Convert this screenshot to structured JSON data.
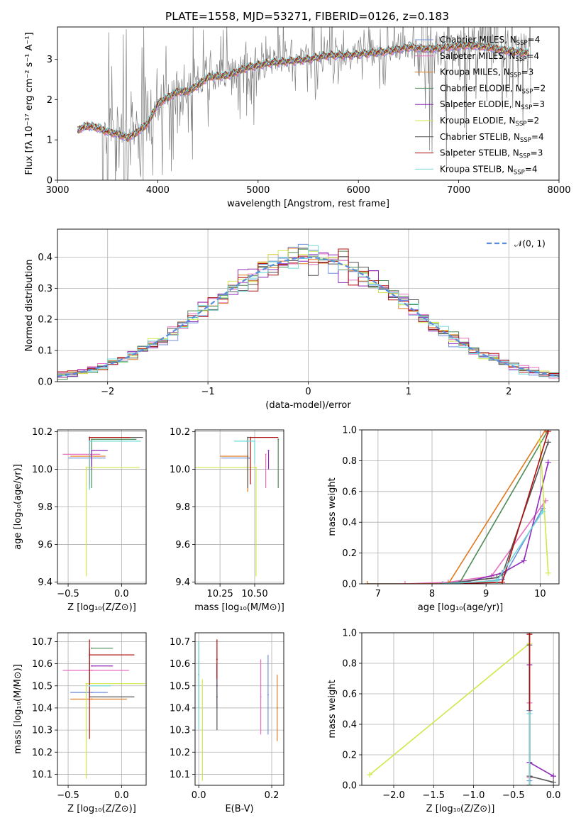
{
  "figure_title": "PLATE=1558, MJD=53271, FIBERID=0126, z=0.183",
  "colors": {
    "Chabrier MILES": "#6f8fdc",
    "Salpeter MILES": "#e870c0",
    "Kroupa MILES": "#e07a20",
    "Chabrier ELODIE": "#4d8b57",
    "Salpeter ELODIE": "#8e2bb8",
    "Kroupa ELODIE": "#cfe84a",
    "Chabrier STELIB": "#555555",
    "Salpeter STELIB": "#b01010",
    "Kroupa STELIB": "#6fd8d8",
    "data": "#808080",
    "normal": "#5b8bdc"
  },
  "chart_data": [
    {
      "id": "spectrum",
      "type": "line",
      "xlabel": "wavelength [Angstrom, rest frame]",
      "ylabel": "Flux [fλ 10⁻¹⁷ erg cm⁻² s⁻¹ A⁻¹]",
      "xlim": [
        3000,
        8000
      ],
      "ylim": [
        0,
        3.8
      ],
      "xticks": [
        "3000",
        "4000",
        "5000",
        "6000",
        "7000",
        "8000"
      ],
      "yticks": [
        "0",
        "1",
        "2",
        "3"
      ],
      "legend_position": "top-right",
      "continuum_x": [
        3200,
        3300,
        3400,
        3500,
        3600,
        3700,
        3800,
        3900,
        4000,
        4100,
        4200,
        4300,
        4400,
        4500,
        4700,
        4900,
        5100,
        5300,
        5500,
        5700,
        5900,
        6100,
        6300,
        6500,
        6700,
        6900,
        7100,
        7300,
        7500,
        7700
      ],
      "continuum_y": [
        1.25,
        1.35,
        1.3,
        1.2,
        1.15,
        1.05,
        1.2,
        1.4,
        1.9,
        2.05,
        2.2,
        2.2,
        2.35,
        2.55,
        2.6,
        2.8,
        2.9,
        2.95,
        3.0,
        3.1,
        3.1,
        3.15,
        3.2,
        3.3,
        3.25,
        3.3,
        3.35,
        3.3,
        3.2,
        3.15
      ],
      "series": [
        {
          "name": "Chabrier MILES",
          "nssp": "4"
        },
        {
          "name": "Salpeter MILES",
          "nssp": "4"
        },
        {
          "name": "Kroupa MILES",
          "nssp": "3"
        },
        {
          "name": "Chabrier ELODIE",
          "nssp": "2"
        },
        {
          "name": "Salpeter ELODIE",
          "nssp": "3"
        },
        {
          "name": "Kroupa ELODIE",
          "nssp": "2"
        },
        {
          "name": "Chabrier STELIB",
          "nssp": "4"
        },
        {
          "name": "Salpeter STELIB",
          "nssp": "3"
        },
        {
          "name": "Kroupa STELIB",
          "nssp": "4"
        }
      ]
    },
    {
      "id": "residuals",
      "type": "histogram",
      "xlabel": "(data-model)/error",
      "ylabel": "Normed distribution",
      "xlim": [
        -2.5,
        2.5
      ],
      "ylim": [
        0,
        0.49
      ],
      "xticks": [
        "−2",
        "−1",
        "0",
        "1",
        "2"
      ],
      "yticks": [
        "0.0",
        "0.1",
        "0.2",
        "0.3",
        "0.4"
      ],
      "grid": true,
      "legend_position": "top-right",
      "legend_label": "𝒩(0, 1)",
      "bin_width": 0.1,
      "bins_from": -2.5
    },
    {
      "id": "age_vs_Z",
      "type": "errorbar",
      "xlabel": "Z [log₁₀(Z/Z⊙)]",
      "ylabel": "age  [log₁₀(age/yr)]",
      "xlim": [
        -0.6,
        0.23
      ],
      "ylim": [
        9.39,
        10.21
      ],
      "xticks": [
        "−0.5",
        "0.0"
      ],
      "yticks": [
        "9.4",
        "9.6",
        "9.8",
        "10.0",
        "10.2"
      ],
      "grid": true,
      "points": [
        {
          "series": "Chabrier MILES",
          "x": -0.28,
          "xerr": [
            0.22,
            0.13
          ],
          "y": 10.06,
          "yerr": [
            0.04,
            0.0
          ]
        },
        {
          "series": "Salpeter MILES",
          "x": -0.28,
          "xerr": [
            0.27,
            0.08
          ],
          "y": 10.08,
          "yerr": [
            0.05,
            0.0
          ]
        },
        {
          "series": "Kroupa MILES",
          "x": -0.28,
          "xerr": [
            0.2,
            0.13
          ],
          "y": 10.07,
          "yerr": [
            0.03,
            0.0
          ]
        },
        {
          "series": "Chabrier ELODIE",
          "x": -0.28,
          "xerr": [
            0.0,
            0.42
          ],
          "y": 10.16,
          "yerr": [
            0.26,
            0.0
          ]
        },
        {
          "series": "Salpeter ELODIE",
          "x": -0.28,
          "xerr": [
            0.0,
            0.15
          ],
          "y": 10.1,
          "yerr": [
            0.1,
            0.0
          ]
        },
        {
          "series": "Kroupa ELODIE",
          "x": -0.33,
          "xerr": [
            0.0,
            0.5
          ],
          "y": 10.01,
          "yerr": [
            0.58,
            0.0
          ]
        },
        {
          "series": "Chabrier STELIB",
          "x": -0.3,
          "xerr": [
            0.0,
            0.5
          ],
          "y": 10.17,
          "yerr": [
            0.27,
            0.0
          ]
        },
        {
          "series": "Salpeter STELIB",
          "x": -0.3,
          "xerr": [
            0.0,
            0.38
          ],
          "y": 10.17,
          "yerr": [
            0.25,
            0.0
          ]
        },
        {
          "series": "Kroupa STELIB",
          "x": -0.3,
          "xerr": [
            0.0,
            0.48
          ],
          "y": 10.15,
          "yerr": [
            0.26,
            0.0
          ]
        }
      ]
    },
    {
      "id": "age_vs_mass",
      "type": "errorbar",
      "xlabel": "mass [log₁₀(M/M⊙)]",
      "ylabel": "",
      "xlim": [
        10.07,
        10.71
      ],
      "ylim": [
        9.39,
        10.21
      ],
      "xticks": [
        "10.25",
        "10.50"
      ],
      "yticks": [
        "9.4",
        "9.6",
        "9.8",
        "10.0",
        "10.2"
      ],
      "grid": true,
      "points": [
        {
          "series": "Chabrier MILES",
          "x": 10.46,
          "xerr": [
            0.2,
            0.0
          ],
          "y": 10.06,
          "yerr": [
            0.0,
            0.0
          ]
        },
        {
          "series": "Salpeter MILES",
          "x": 10.58,
          "xerr": [
            0.0,
            0.0
          ],
          "y": 10.08,
          "yerr": [
            0.18,
            0.0
          ]
        },
        {
          "series": "Kroupa MILES",
          "x": 10.45,
          "xerr": [
            0.2,
            0.0
          ],
          "y": 10.07,
          "yerr": [
            0.19,
            0.0
          ]
        },
        {
          "series": "Chabrier ELODIE",
          "x": 10.67,
          "xerr": [
            0.0,
            0.0
          ],
          "y": 10.16,
          "yerr": [
            0.26,
            0.0
          ]
        },
        {
          "series": "Salpeter ELODIE",
          "x": 10.6,
          "xerr": [
            0.0,
            0.0
          ],
          "y": 10.1,
          "yerr": [
            0.1,
            0.0
          ]
        },
        {
          "series": "Kroupa ELODIE",
          "x": 10.51,
          "xerr": [
            0.44,
            0.0
          ],
          "y": 10.01,
          "yerr": [
            0.58,
            0.0
          ]
        },
        {
          "series": "Chabrier STELIB",
          "x": 10.45,
          "xerr": [
            0.0,
            0.22
          ],
          "y": 10.17,
          "yerr": [
            0.27,
            0.0
          ]
        },
        {
          "series": "Salpeter STELIB",
          "x": 10.47,
          "xerr": [
            0.0,
            0.2
          ],
          "y": 10.17,
          "yerr": [
            0.25,
            0.0
          ]
        },
        {
          "series": "Kroupa STELIB",
          "x": 10.5,
          "xerr": [
            0.15,
            0.0
          ],
          "y": 10.15,
          "yerr": [
            0.12,
            0.0
          ]
        }
      ]
    },
    {
      "id": "massweight_vs_age",
      "type": "line",
      "xlabel": "age  [log₁₀(age/yr)]",
      "ylabel": "mass weight",
      "xlim": [
        6.7,
        10.35
      ],
      "ylim": [
        0,
        1.0
      ],
      "xticks": [
        "7",
        "8",
        "9",
        "10"
      ],
      "yticks": [
        "0.0",
        "0.2",
        "0.4",
        "0.6",
        "0.8",
        "1.0"
      ],
      "grid": true,
      "series": [
        {
          "name": "Chabrier MILES",
          "x": [
            6.8,
            8.6,
            9.3,
            10.05
          ],
          "y": [
            0.0,
            0.0,
            0.03,
            0.49
          ]
        },
        {
          "name": "Salpeter MILES",
          "x": [
            7.5,
            8.3,
            9.1,
            10.1
          ],
          "y": [
            0.0,
            0.01,
            0.05,
            0.54
          ]
        },
        {
          "name": "Kroupa MILES",
          "x": [
            6.8,
            8.3,
            10.1
          ],
          "y": [
            0.0,
            0.0,
            1.0
          ]
        },
        {
          "name": "Chabrier ELODIE",
          "x": [
            8.5,
            10.15
          ],
          "y": [
            0.0,
            1.0
          ]
        },
        {
          "name": "Salpeter ELODIE",
          "x": [
            8.5,
            9.3,
            9.7,
            10.15
          ],
          "y": [
            0.0,
            0.07,
            0.15,
            0.79
          ]
        },
        {
          "name": "Kroupa ELODIE",
          "x": [
            10.0,
            10.15
          ],
          "y": [
            0.93,
            0.07
          ]
        },
        {
          "name": "Chabrier STELIB",
          "x": [
            8.2,
            9.2,
            9.3,
            10.15
          ],
          "y": [
            0.0,
            0.04,
            0.06,
            0.92
          ]
        },
        {
          "name": "Salpeter STELIB",
          "x": [
            8.2,
            9.3,
            10.15
          ],
          "y": [
            0.0,
            0.01,
            0.99
          ]
        },
        {
          "name": "Kroupa STELIB",
          "x": [
            8.2,
            9.2,
            10.05
          ],
          "y": [
            0.0,
            0.02,
            0.47
          ]
        }
      ]
    },
    {
      "id": "mass_vs_Z",
      "type": "errorbar",
      "xlabel": "Z [log₁₀(Z/Z⊙)]",
      "ylabel": "mass [log₁₀(M/M⊙)]",
      "xlim": [
        -0.6,
        0.23
      ],
      "ylim": [
        10.05,
        10.74
      ],
      "xticks": [
        "−0.5",
        "0.0"
      ],
      "yticks": [
        "10.1",
        "10.2",
        "10.3",
        "10.4",
        "10.5",
        "10.6",
        "10.7"
      ],
      "grid": true,
      "points": [
        {
          "series": "Chabrier MILES",
          "x": -0.28,
          "xerr": [
            0.2,
            0.15
          ],
          "y": 10.47,
          "yerr": [
            0.0,
            0.0
          ]
        },
        {
          "series": "Salpeter MILES",
          "x": -0.28,
          "xerr": [
            0.27,
            0.35
          ],
          "y": 10.57,
          "yerr": [
            0.0,
            0.0
          ]
        },
        {
          "series": "Kroupa MILES",
          "x": -0.28,
          "xerr": [
            0.2,
            0.33
          ],
          "y": 10.44,
          "yerr": [
            0.0,
            0.0
          ]
        },
        {
          "series": "Chabrier ELODIE",
          "x": -0.28,
          "xerr": [
            0.0,
            0.2
          ],
          "y": 10.67,
          "yerr": [
            0.0,
            0.0
          ]
        },
        {
          "series": "Salpeter ELODIE",
          "x": -0.28,
          "xerr": [
            0.0,
            0.2
          ],
          "y": 10.59,
          "yerr": [
            0.0,
            0.0
          ]
        },
        {
          "series": "Kroupa ELODIE",
          "x": -0.33,
          "xerr": [
            0.0,
            0.55
          ],
          "y": 10.51,
          "yerr": [
            0.43,
            0.0
          ]
        },
        {
          "series": "Chabrier STELIB",
          "x": -0.3,
          "xerr": [
            0.0,
            0.42
          ],
          "y": 10.45,
          "yerr": [
            0.0,
            0.22
          ]
        },
        {
          "series": "Salpeter STELIB",
          "x": -0.3,
          "xerr": [
            0.0,
            0.42
          ],
          "y": 10.64,
          "yerr": [
            0.38,
            0.07
          ]
        },
        {
          "series": "Kroupa STELIB",
          "x": -0.3,
          "xerr": [
            0.0,
            0.2
          ],
          "y": 10.5,
          "yerr": [
            0.0,
            0.0
          ]
        }
      ]
    },
    {
      "id": "mass_vs_EBV",
      "type": "errorbar",
      "xlabel": "E(B-V)",
      "ylabel": "",
      "xlim": [
        -0.01,
        0.233
      ],
      "ylim": [
        10.05,
        10.74
      ],
      "xticks": [
        "0.0",
        "0.2"
      ],
      "yticks": [
        "10.1",
        "10.2",
        "10.3",
        "10.4",
        "10.5",
        "10.6",
        "10.7"
      ],
      "grid": true,
      "points": [
        {
          "series": "Chabrier MILES",
          "x": 0.19,
          "y": 10.46,
          "yerr": [
            0.18,
            0.18
          ]
        },
        {
          "series": "Salpeter MILES",
          "x": 0.17,
          "y": 10.45,
          "yerr": [
            0.17,
            0.17
          ]
        },
        {
          "series": "Kroupa MILES",
          "x": 0.215,
          "y": 10.4,
          "yerr": [
            0.15,
            0.15
          ]
        },
        {
          "series": "Chabrier ELODIE",
          "x": 0.0,
          "y": 10.55,
          "yerr": [
            0.15,
            0.15
          ]
        },
        {
          "series": "Salpeter ELODIE",
          "x": 0.05,
          "y": 10.5,
          "yerr": [
            0.1,
            0.1
          ]
        },
        {
          "series": "Kroupa ELODIE",
          "x": 0.01,
          "y": 10.3,
          "yerr": [
            0.23,
            0.23
          ]
        },
        {
          "series": "Chabrier STELIB",
          "x": 0.05,
          "y": 10.45,
          "yerr": [
            0.15,
            0.15
          ]
        },
        {
          "series": "Salpeter STELIB",
          "x": 0.05,
          "y": 10.62,
          "yerr": [
            0.09,
            0.09
          ]
        },
        {
          "series": "Kroupa STELIB",
          "x": 0.0,
          "y": 10.5,
          "yerr": [
            0.2,
            0.2
          ]
        }
      ]
    },
    {
      "id": "massweight_vs_Z",
      "type": "line",
      "xlabel": "Z [log₁₀(Z/Z⊙)]",
      "ylabel": "mass weight",
      "xlim": [
        -2.4,
        0.07
      ],
      "ylim": [
        0,
        1.0
      ],
      "xticks": [
        "−2.0",
        "−1.5",
        "−1.0",
        "−0.5",
        "0.0"
      ],
      "yticks": [
        "0.0",
        "0.2",
        "0.4",
        "0.6",
        "0.8",
        "1.0"
      ],
      "grid": true,
      "series": [
        {
          "name": "Chabrier MILES",
          "x": [
            -0.3,
            -0.3,
            -0.3
          ],
          "y": [
            0.0,
            0.03,
            0.49
          ]
        },
        {
          "name": "Salpeter MILES",
          "x": [
            -0.3,
            -0.3,
            -0.3
          ],
          "y": [
            0.0,
            0.05,
            0.54
          ]
        },
        {
          "name": "Kroupa MILES",
          "x": [
            -0.3,
            -0.3
          ],
          "y": [
            0.0,
            1.0
          ]
        },
        {
          "name": "Chabrier ELODIE",
          "x": [
            -0.3,
            -0.3
          ],
          "y": [
            0.0,
            1.0
          ]
        },
        {
          "name": "Salpeter ELODIE",
          "x": [
            -0.3,
            -0.3,
            0.0
          ],
          "y": [
            0.79,
            0.15,
            0.06
          ]
        },
        {
          "name": "Kroupa ELODIE",
          "x": [
            -2.3,
            -0.3
          ],
          "y": [
            0.07,
            0.93
          ]
        },
        {
          "name": "Chabrier STELIB",
          "x": [
            -0.3,
            -0.3,
            0.0
          ],
          "y": [
            0.92,
            0.06,
            0.02
          ]
        },
        {
          "name": "Salpeter STELIB",
          "x": [
            -0.3,
            -0.3
          ],
          "y": [
            0.0,
            0.99
          ]
        },
        {
          "name": "Kroupa STELIB",
          "x": [
            -0.3,
            -0.3
          ],
          "y": [
            0.0,
            0.47
          ]
        }
      ]
    }
  ]
}
